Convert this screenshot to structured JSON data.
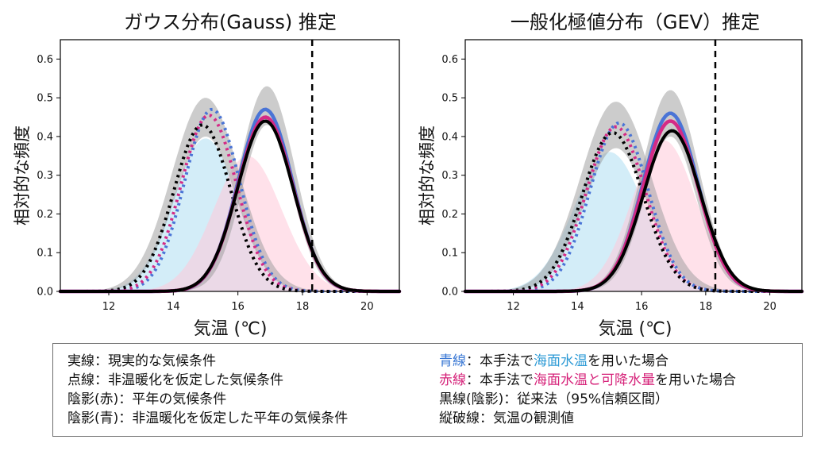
{
  "chart_data": [
    {
      "type": "area",
      "title": "ガウス分布(Gauss) 推定",
      "xlabel": "気温 (℃)",
      "ylabel": "相対的な頻度",
      "xlim": [
        10.5,
        21.0
      ],
      "ylim": [
        0.0,
        0.65
      ],
      "x_ticks": [
        "12",
        "14",
        "16",
        "18",
        "20"
      ],
      "y_ticks": [
        "0.0",
        "0.1",
        "0.2",
        "0.3",
        "0.4",
        "0.5",
        "0.6"
      ],
      "observed_temperature": 18.3,
      "series": [
        {
          "peak_x": 15.0,
          "peak_y": 0.395,
          "width": 1.0,
          "spread": 0.0
        },
        {
          "peak_x": 16.3,
          "peak_y": 0.35,
          "width": 1.05,
          "spread": 0.0
        },
        {
          "peak_x": 15.0,
          "peak_y": 0.45,
          "width": 1.0,
          "spread": 0.05
        },
        {
          "peak_x": 16.9,
          "peak_y": 0.48,
          "width": 0.82,
          "spread": 0.05
        },
        {
          "peak_x": 15.2,
          "peak_y": 0.47,
          "width": 0.85,
          "spread": 0.0
        },
        {
          "peak_x": 15.1,
          "peak_y": 0.455,
          "width": 0.86,
          "spread": 0.0
        },
        {
          "peak_x": 14.9,
          "peak_y": 0.43,
          "width": 0.88,
          "spread": 0.0
        },
        {
          "peak_x": 16.85,
          "peak_y": 0.47,
          "width": 0.84,
          "spread": 0.0
        },
        {
          "peak_x": 16.85,
          "peak_y": 0.45,
          "width": 0.85,
          "spread": 0.0
        },
        {
          "peak_x": 16.85,
          "peak_y": 0.44,
          "width": 0.86,
          "spread": 0.0
        }
      ]
    },
    {
      "type": "area",
      "title": "一般化極値分布（GEV）推定",
      "xlabel": "気温 (℃)",
      "ylabel": "相対的な頻度",
      "xlim": [
        10.5,
        21.0
      ],
      "ylim": [
        0.0,
        0.65
      ],
      "x_ticks": [
        "12",
        "14",
        "16",
        "18",
        "20"
      ],
      "y_ticks": [
        "0.0",
        "0.1",
        "0.2",
        "0.3",
        "0.4",
        "0.5",
        "0.6"
      ],
      "observed_temperature": 18.3,
      "series": [
        {
          "peak_x": 15.0,
          "peak_y": 0.36,
          "width": 1.1,
          "spread": 0.0
        },
        {
          "peak_x": 16.7,
          "peak_y": 0.39,
          "width": 1.0,
          "spread": 0.0
        },
        {
          "peak_x": 15.2,
          "peak_y": 0.43,
          "width": 1.05,
          "spread": 0.06
        },
        {
          "peak_x": 16.9,
          "peak_y": 0.46,
          "width": 0.85,
          "spread": 0.06
        },
        {
          "peak_x": 15.3,
          "peak_y": 0.435,
          "width": 0.9,
          "spread": 0.0
        },
        {
          "peak_x": 15.2,
          "peak_y": 0.425,
          "width": 0.92,
          "spread": 0.0
        },
        {
          "peak_x": 15.1,
          "peak_y": 0.41,
          "width": 0.95,
          "spread": 0.0
        },
        {
          "peak_x": 16.9,
          "peak_y": 0.46,
          "width": 0.86,
          "spread": 0.0
        },
        {
          "peak_x": 16.9,
          "peak_y": 0.44,
          "width": 0.87,
          "spread": 0.0
        },
        {
          "peak_x": 16.95,
          "peak_y": 0.415,
          "width": 0.89,
          "spread": 0.0
        }
      ]
    }
  ],
  "legend": {
    "left": [
      {
        "key": "実線",
        "sep": "：",
        "text": "現実的な気候条件"
      },
      {
        "key": "点線",
        "sep": "：",
        "text": "非温暖化を仮定した気候条件"
      },
      {
        "key": "陰影(赤)",
        "sep": "：",
        "text": "平年の気候条件"
      },
      {
        "key": "陰影(青)",
        "sep": "：",
        "text": "非温暖化を仮定した平年の気候条件"
      }
    ],
    "right": [
      {
        "key": "青線",
        "sep": "：",
        "pre": "本手法で",
        "hl": "海面水温",
        "post": "を用いた場合"
      },
      {
        "key": "赤線",
        "sep": "：",
        "pre": "本手法で",
        "hl": "海面水温と可降水量",
        "post": "を用いた場合"
      },
      {
        "key": "黒線(陰影)",
        "sep": "：",
        "text": "従来法（95%信頼区間）"
      },
      {
        "key": "縦破線",
        "sep": "：",
        "text": "気温の観測値"
      }
    ]
  },
  "colors": {
    "blue": "#4a74d6",
    "pink": "#d42a86",
    "black": "#000000",
    "gray_band": "#9a9a9a",
    "red_shade": "#ffc9d8",
    "blue_shade": "#b6e1f4",
    "legend_blue": "#3a78d4",
    "legend_pink": "#d6237a",
    "legend_sky": "#2e9bd6"
  }
}
